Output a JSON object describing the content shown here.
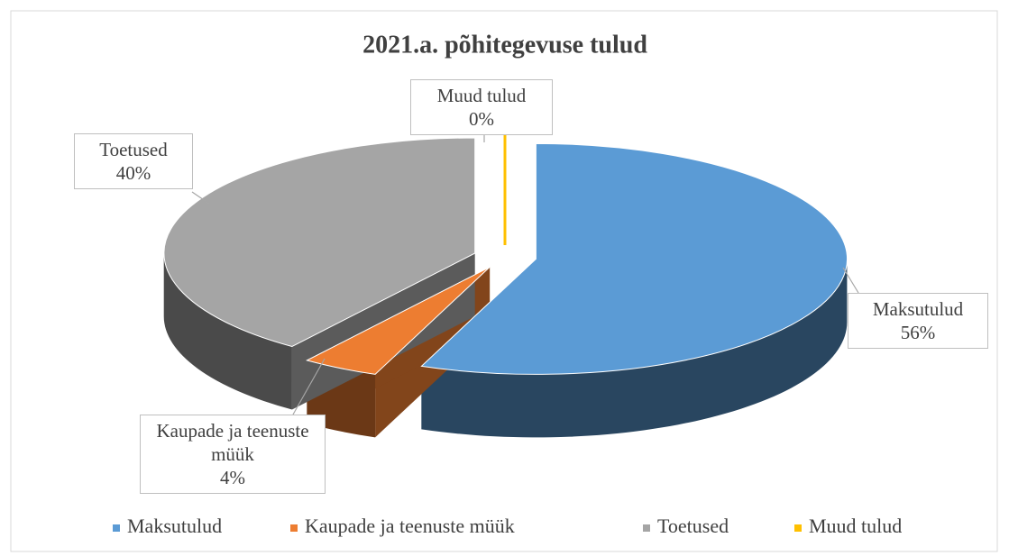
{
  "chart_data": {
    "type": "pie",
    "title": "2021.a. põhitegevuse tulud",
    "categories": [
      "Maksutulud",
      "Kaupade ja teenuste müük",
      "Toetused",
      "Muud tulud"
    ],
    "values": [
      56,
      4,
      40,
      0
    ],
    "value_labels": [
      "56%",
      "4%",
      "40%",
      "0%"
    ],
    "colors": [
      "#5b9bd5",
      "#ed7d31",
      "#a5a5a5",
      "#ffc000"
    ],
    "legend": "bottom"
  }
}
